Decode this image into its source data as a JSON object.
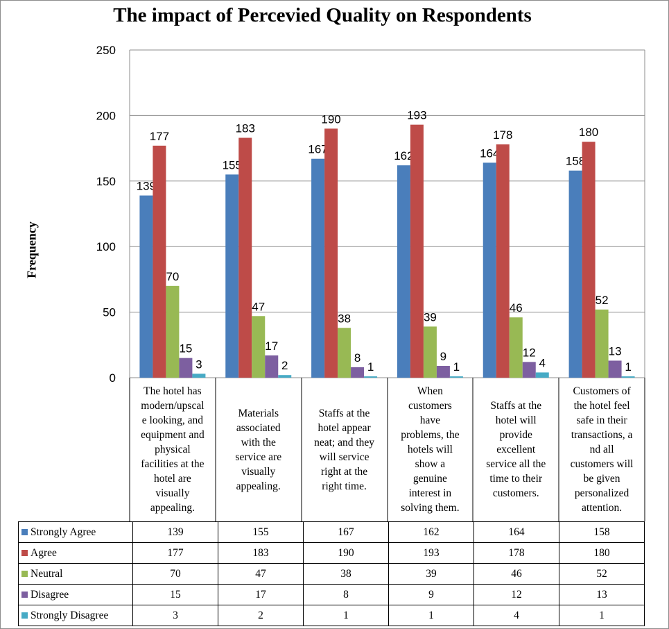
{
  "chart_data": {
    "type": "bar",
    "title": "The impact of Percevied Quality  on Respondents",
    "xlabel": "",
    "ylabel": "Frequency",
    "ylim": [
      0,
      250
    ],
    "yticks": [
      "0",
      "50",
      "100",
      "150",
      "200",
      "250"
    ],
    "grid": true,
    "legend": "data-table-left",
    "categories": [
      "The hotel has modern/upscale looking, and equipment and physical facilities at the hotel are visually appealing.",
      "Materials associated with the service are visually appealing.",
      "Staffs at the hotel appear neat; and they will service right at the right time.",
      "When customers have problems, the hotels will show a genuine interest in solving them.",
      "Staffs at the hotel will provide excellent service all the time to their customers.",
      "Customers of the hotel feel safe in their transactions, and all customers will be given personalized attention."
    ],
    "category_lines": [
      [
        "The hotel has",
        "modern/upscal",
        "e looking, and",
        "equipment and",
        "physical",
        "facilities at the",
        "hotel are",
        "visually",
        "appealing."
      ],
      [
        "Materials",
        "associated",
        "with the",
        "service are",
        "visually",
        "appealing."
      ],
      [
        "Staffs at the",
        "hotel appear",
        "neat; and they",
        "will service",
        "right at the",
        "right time."
      ],
      [
        "When",
        "customers",
        "have",
        "problems, the",
        "hotels will",
        "show a",
        "genuine",
        "interest in",
        "solving them."
      ],
      [
        "Staffs at the",
        "hotel will",
        "provide",
        "excellent",
        "service all the",
        "time to their",
        "customers."
      ],
      [
        "Customers of",
        "the hotel feel",
        "safe in their",
        "transactions, a",
        "nd all",
        "customers will",
        "be given",
        "personalized",
        "attention."
      ]
    ],
    "series": [
      {
        "name": "Strongly Agree",
        "color": "#4a7ebb",
        "values": [
          139,
          155,
          167,
          162,
          164,
          158
        ]
      },
      {
        "name": "Agree",
        "color": "#be4b48",
        "values": [
          177,
          183,
          190,
          193,
          178,
          180
        ]
      },
      {
        "name": "Neutral",
        "color": "#98b954",
        "values": [
          70,
          47,
          38,
          39,
          46,
          52
        ]
      },
      {
        "name": "Disagree",
        "color": "#7d5fa0",
        "values": [
          15,
          17,
          8,
          9,
          12,
          13
        ]
      },
      {
        "name": "Strongly Disagree",
        "color": "#46aac5",
        "values": [
          3,
          2,
          1,
          1,
          4,
          1
        ]
      }
    ]
  }
}
